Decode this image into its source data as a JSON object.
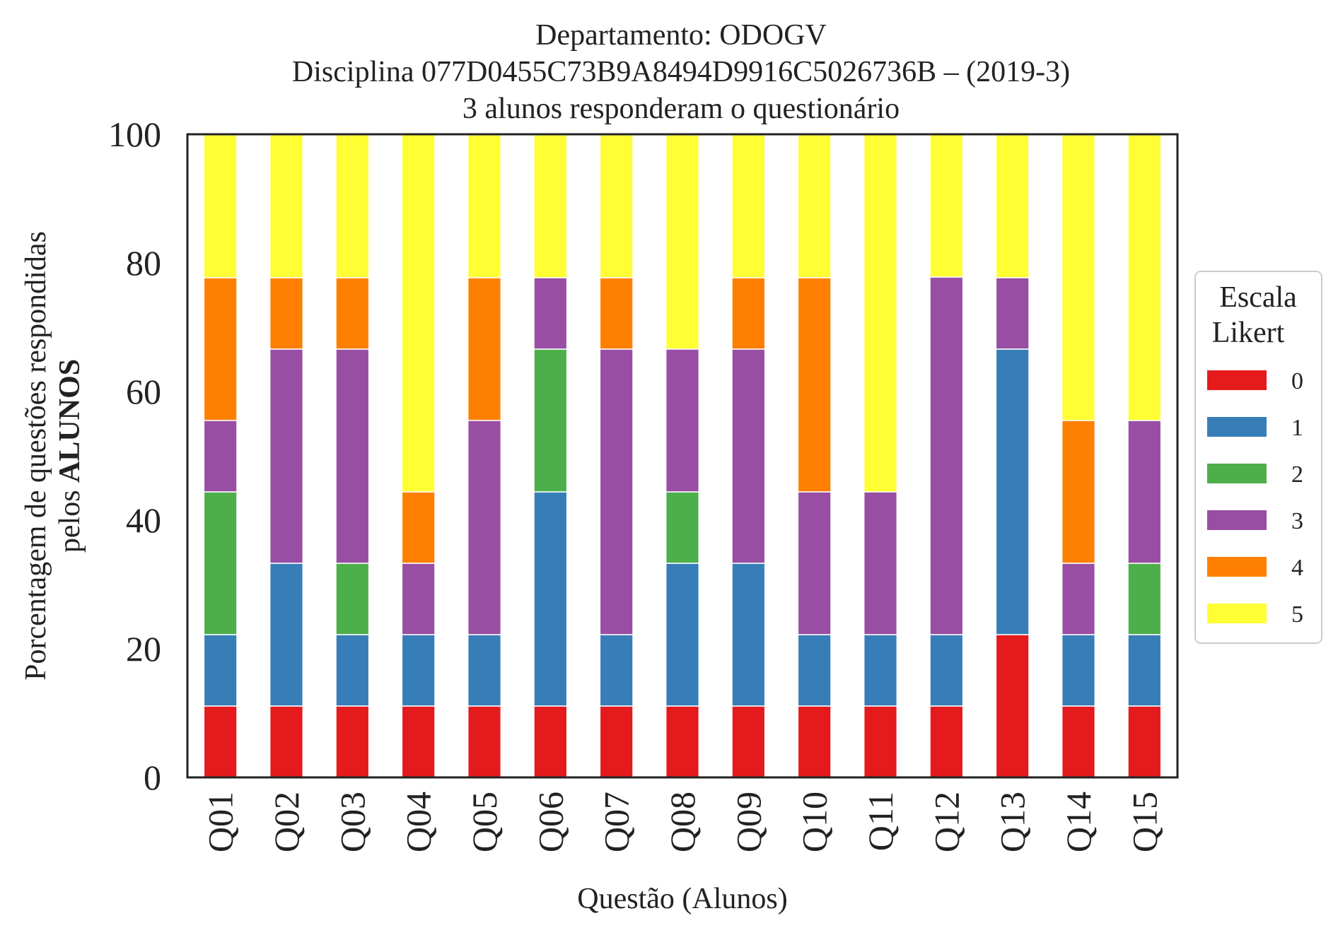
{
  "chart_data": {
    "type": "bar",
    "stacked": true,
    "title_lines": [
      "Departamento: ODOGV",
      "Disciplina 077D0455C73B9A8494D9916C5026736B – (2019-3)",
      "3 alunos responderam o questionário"
    ],
    "xlabel": "Questão (Alunos)",
    "ylabel_line1": "Porcentagem de questões respondidas",
    "ylabel_line2_prefix": "pelos ",
    "ylabel_line2_bold": "ALUNOS",
    "ylim": [
      0,
      100
    ],
    "yticks": [
      "0",
      "20",
      "40",
      "60",
      "80",
      "100"
    ],
    "categories": [
      "Q01",
      "Q02",
      "Q03",
      "Q04",
      "Q05",
      "Q06",
      "Q07",
      "Q08",
      "Q09",
      "Q10",
      "Q11",
      "Q12",
      "Q13",
      "Q14",
      "Q15"
    ],
    "legend": {
      "title_line1": "Escala",
      "title_line2": "Likert",
      "placement": "center-right"
    },
    "series": [
      {
        "name": "0",
        "color": "#e41a1c",
        "values": [
          11.1,
          11.1,
          11.1,
          11.1,
          11.1,
          11.1,
          11.1,
          11.1,
          11.1,
          11.1,
          11.1,
          11.1,
          22.2,
          11.1,
          11.1
        ]
      },
      {
        "name": "1",
        "color": "#377eb8",
        "values": [
          11.1,
          22.2,
          11.1,
          11.1,
          11.1,
          33.3,
          11.1,
          22.2,
          22.2,
          11.1,
          11.1,
          11.1,
          44.4,
          11.1,
          11.1
        ]
      },
      {
        "name": "2",
        "color": "#4daf4a",
        "values": [
          22.2,
          0,
          11.1,
          0,
          0,
          22.2,
          0,
          11.1,
          0,
          0,
          0,
          0,
          0,
          0,
          11.1
        ]
      },
      {
        "name": "3",
        "color": "#984ea3",
        "values": [
          11.1,
          33.3,
          33.3,
          11.1,
          33.3,
          11.1,
          44.4,
          22.2,
          33.3,
          22.2,
          22.2,
          55.6,
          11.1,
          11.1,
          22.2
        ]
      },
      {
        "name": "4",
        "color": "#ff7f00",
        "values": [
          22.2,
          11.1,
          11.1,
          11.1,
          22.2,
          0,
          11.1,
          0,
          11.1,
          33.3,
          0,
          0,
          0,
          22.2,
          0
        ]
      },
      {
        "name": "5",
        "color": "#ffff33",
        "values": [
          22.2,
          22.2,
          22.2,
          55.6,
          22.2,
          22.2,
          22.2,
          33.3,
          22.2,
          22.2,
          55.6,
          22.2,
          22.2,
          44.4,
          44.4
        ]
      }
    ]
  }
}
